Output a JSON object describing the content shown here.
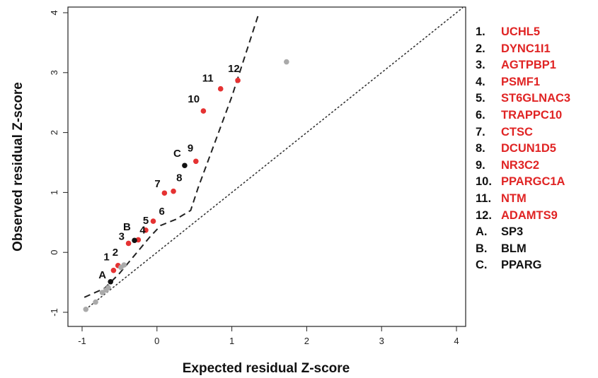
{
  "chart_data": {
    "type": "scatter",
    "title": "",
    "xlabel": "Expected residual Z-score",
    "ylabel": "Observed residual Z-score",
    "xlim": [
      -1.1,
      4.1
    ],
    "ylim": [
      -1.1,
      4.1
    ],
    "xticks": [
      "-1",
      "0",
      "1",
      "2",
      "3",
      "4"
    ],
    "yticks": [
      "-1",
      "0",
      "1",
      "2",
      "3",
      "4"
    ],
    "grid": false,
    "colors": {
      "gene_set": "#e53232",
      "control": "#111111",
      "other": "#aaaaaa",
      "label_gene_set": "#e02424",
      "label_control": "#111111"
    },
    "points": [
      {
        "label": "1",
        "x": -0.58,
        "y": -0.3,
        "group": "gene_set"
      },
      {
        "label": "2",
        "x": -0.52,
        "y": -0.22,
        "group": "gene_set"
      },
      {
        "label": "3",
        "x": -0.38,
        "y": 0.15,
        "group": "gene_set"
      },
      {
        "label": "4",
        "x": -0.25,
        "y": 0.21,
        "group": "gene_set"
      },
      {
        "label": "5",
        "x": -0.15,
        "y": 0.37,
        "group": "gene_set"
      },
      {
        "label": "6",
        "x": -0.05,
        "y": 0.52,
        "group": "gene_set"
      },
      {
        "label": "7",
        "x": 0.1,
        "y": 0.99,
        "group": "gene_set"
      },
      {
        "label": "8",
        "x": 0.22,
        "y": 1.02,
        "group": "gene_set"
      },
      {
        "label": "9",
        "x": 0.52,
        "y": 1.52,
        "group": "gene_set"
      },
      {
        "label": "10",
        "x": 0.62,
        "y": 2.36,
        "group": "gene_set"
      },
      {
        "label": "11",
        "x": 0.85,
        "y": 2.73,
        "group": "gene_set"
      },
      {
        "label": "12",
        "x": 1.08,
        "y": 2.87,
        "group": "gene_set"
      },
      {
        "label": "A",
        "x": -0.62,
        "y": -0.49,
        "group": "control"
      },
      {
        "label": "B",
        "x": -0.3,
        "y": 0.2,
        "group": "control"
      },
      {
        "label": "C",
        "x": 0.37,
        "y": 1.45,
        "group": "control"
      },
      {
        "label": "",
        "x": 1.73,
        "y": 3.18,
        "group": "other"
      },
      {
        "label": "",
        "x": -0.95,
        "y": -0.95,
        "group": "other"
      },
      {
        "label": "",
        "x": -0.82,
        "y": -0.83,
        "group": "other"
      },
      {
        "label": "",
        "x": -0.73,
        "y": -0.67,
        "group": "other"
      },
      {
        "label": "",
        "x": -0.68,
        "y": -0.63,
        "group": "other"
      },
      {
        "label": "",
        "x": -0.65,
        "y": -0.59,
        "group": "other"
      },
      {
        "label": "",
        "x": -0.48,
        "y": -0.25,
        "group": "other"
      },
      {
        "label": "",
        "x": -0.44,
        "y": -0.21,
        "group": "other"
      }
    ],
    "reference_line": {
      "style": "dotted",
      "x": [
        -1.1,
        4.1
      ],
      "y": [
        -1.1,
        4.1
      ]
    },
    "envelope_line": {
      "style": "dashed",
      "x": [
        -0.97,
        -0.7,
        -0.5,
        -0.3,
        -0.1,
        0.05,
        0.25,
        0.45,
        0.55,
        1.0,
        1.35
      ],
      "y": [
        -0.75,
        -0.6,
        -0.35,
        -0.05,
        0.25,
        0.45,
        0.55,
        0.7,
        1.08,
        2.6,
        3.95
      ]
    }
  },
  "legend": {
    "items": [
      {
        "key": "1.",
        "name": "UCHL5",
        "group": "gene_set"
      },
      {
        "key": "2.",
        "name": "DYNC1I1",
        "group": "gene_set"
      },
      {
        "key": "3.",
        "name": "AGTPBP1",
        "group": "gene_set"
      },
      {
        "key": "4.",
        "name": "PSMF1",
        "group": "gene_set"
      },
      {
        "key": "5.",
        "name": "ST6GLNAC3",
        "group": "gene_set"
      },
      {
        "key": "6.",
        "name": "TRAPPC10",
        "group": "gene_set"
      },
      {
        "key": "7.",
        "name": "CTSC",
        "group": "gene_set"
      },
      {
        "key": "8.",
        "name": "DCUN1D5",
        "group": "gene_set"
      },
      {
        "key": "9.",
        "name": "NR3C2",
        "group": "gene_set"
      },
      {
        "key": "10.",
        "name": "PPARGC1A",
        "group": "gene_set"
      },
      {
        "key": "11.",
        "name": "NTM",
        "group": "gene_set"
      },
      {
        "key": "12.",
        "name": "ADAMTS9",
        "group": "gene_set"
      },
      {
        "key": "A.",
        "name": "SP3",
        "group": "control"
      },
      {
        "key": "B.",
        "name": "BLM",
        "group": "control"
      },
      {
        "key": "C.",
        "name": "PPARG",
        "group": "control"
      }
    ]
  }
}
